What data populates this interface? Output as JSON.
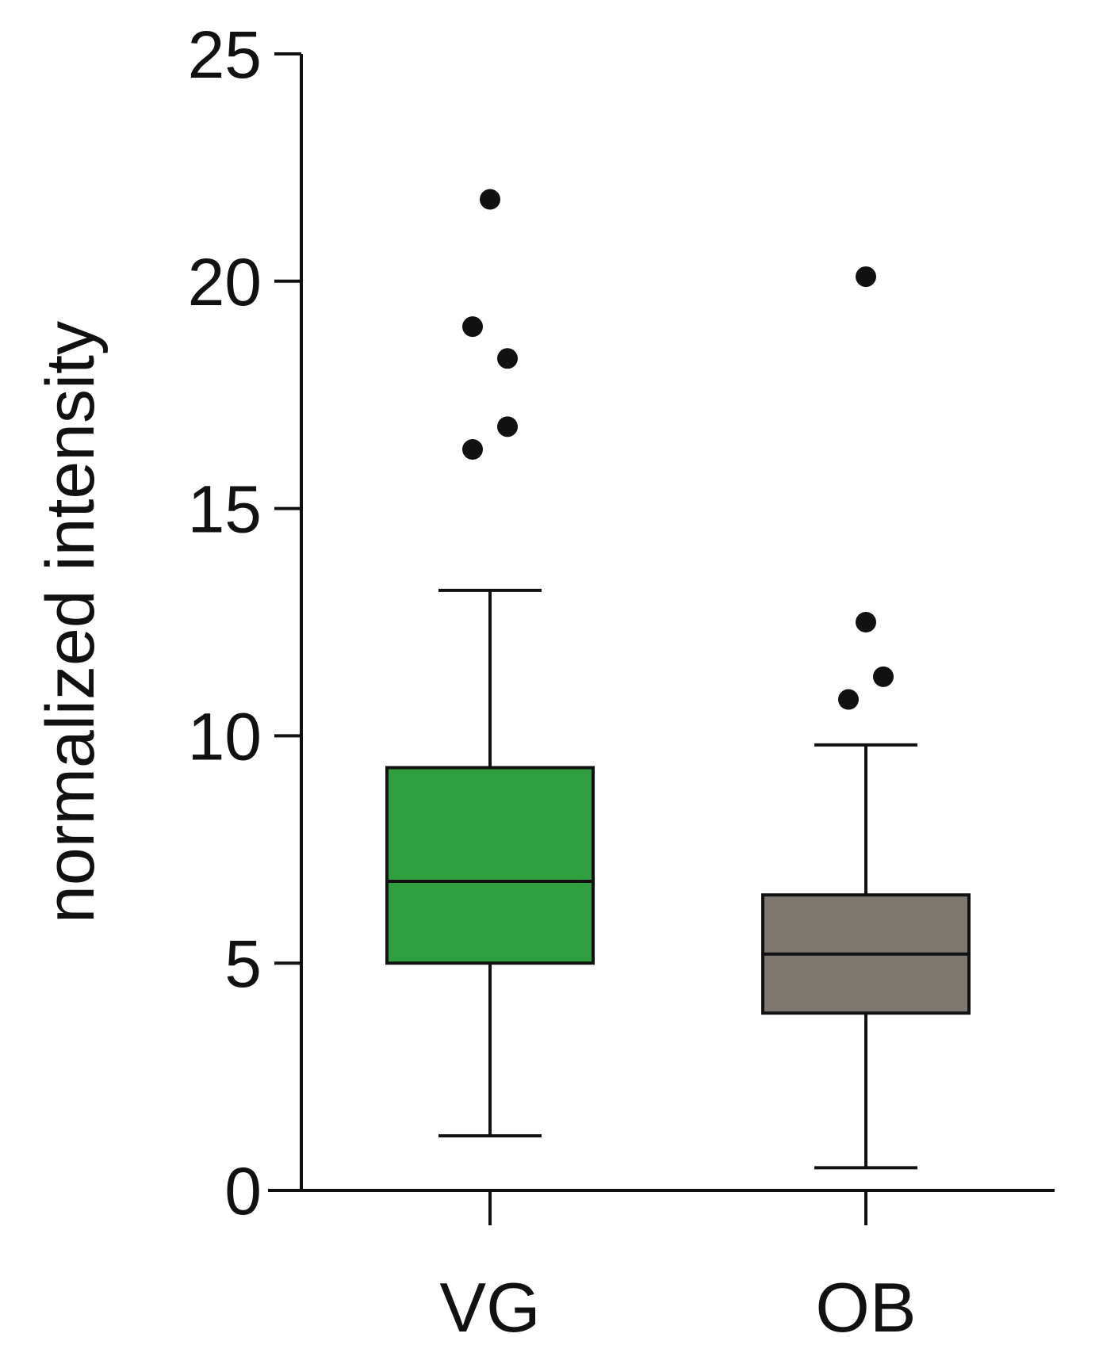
{
  "chart_data": {
    "type": "box",
    "ylabel": "normalized intensity",
    "ylim": [
      0,
      25
    ],
    "yticks": [
      0,
      5,
      10,
      15,
      20,
      25
    ],
    "ytick_labels": [
      "0",
      "5",
      "10",
      "15",
      "20",
      "25"
    ],
    "grid": false,
    "categories": [
      "VG",
      "OB"
    ],
    "series": [
      {
        "category": "VG",
        "color": "#2e9e40",
        "whisker_low": 1.2,
        "q1": 5.0,
        "median": 6.8,
        "q3": 9.3,
        "whisker_high": 13.2,
        "outliers": [
          21.8,
          19.0,
          18.3,
          16.8,
          16.3
        ]
      },
      {
        "category": "OB",
        "color": "#7d7770",
        "whisker_low": 0.5,
        "q1": 3.9,
        "median": 5.2,
        "q3": 6.5,
        "whisker_high": 9.8,
        "outliers": [
          20.1,
          12.5,
          11.3,
          10.8
        ]
      }
    ]
  }
}
